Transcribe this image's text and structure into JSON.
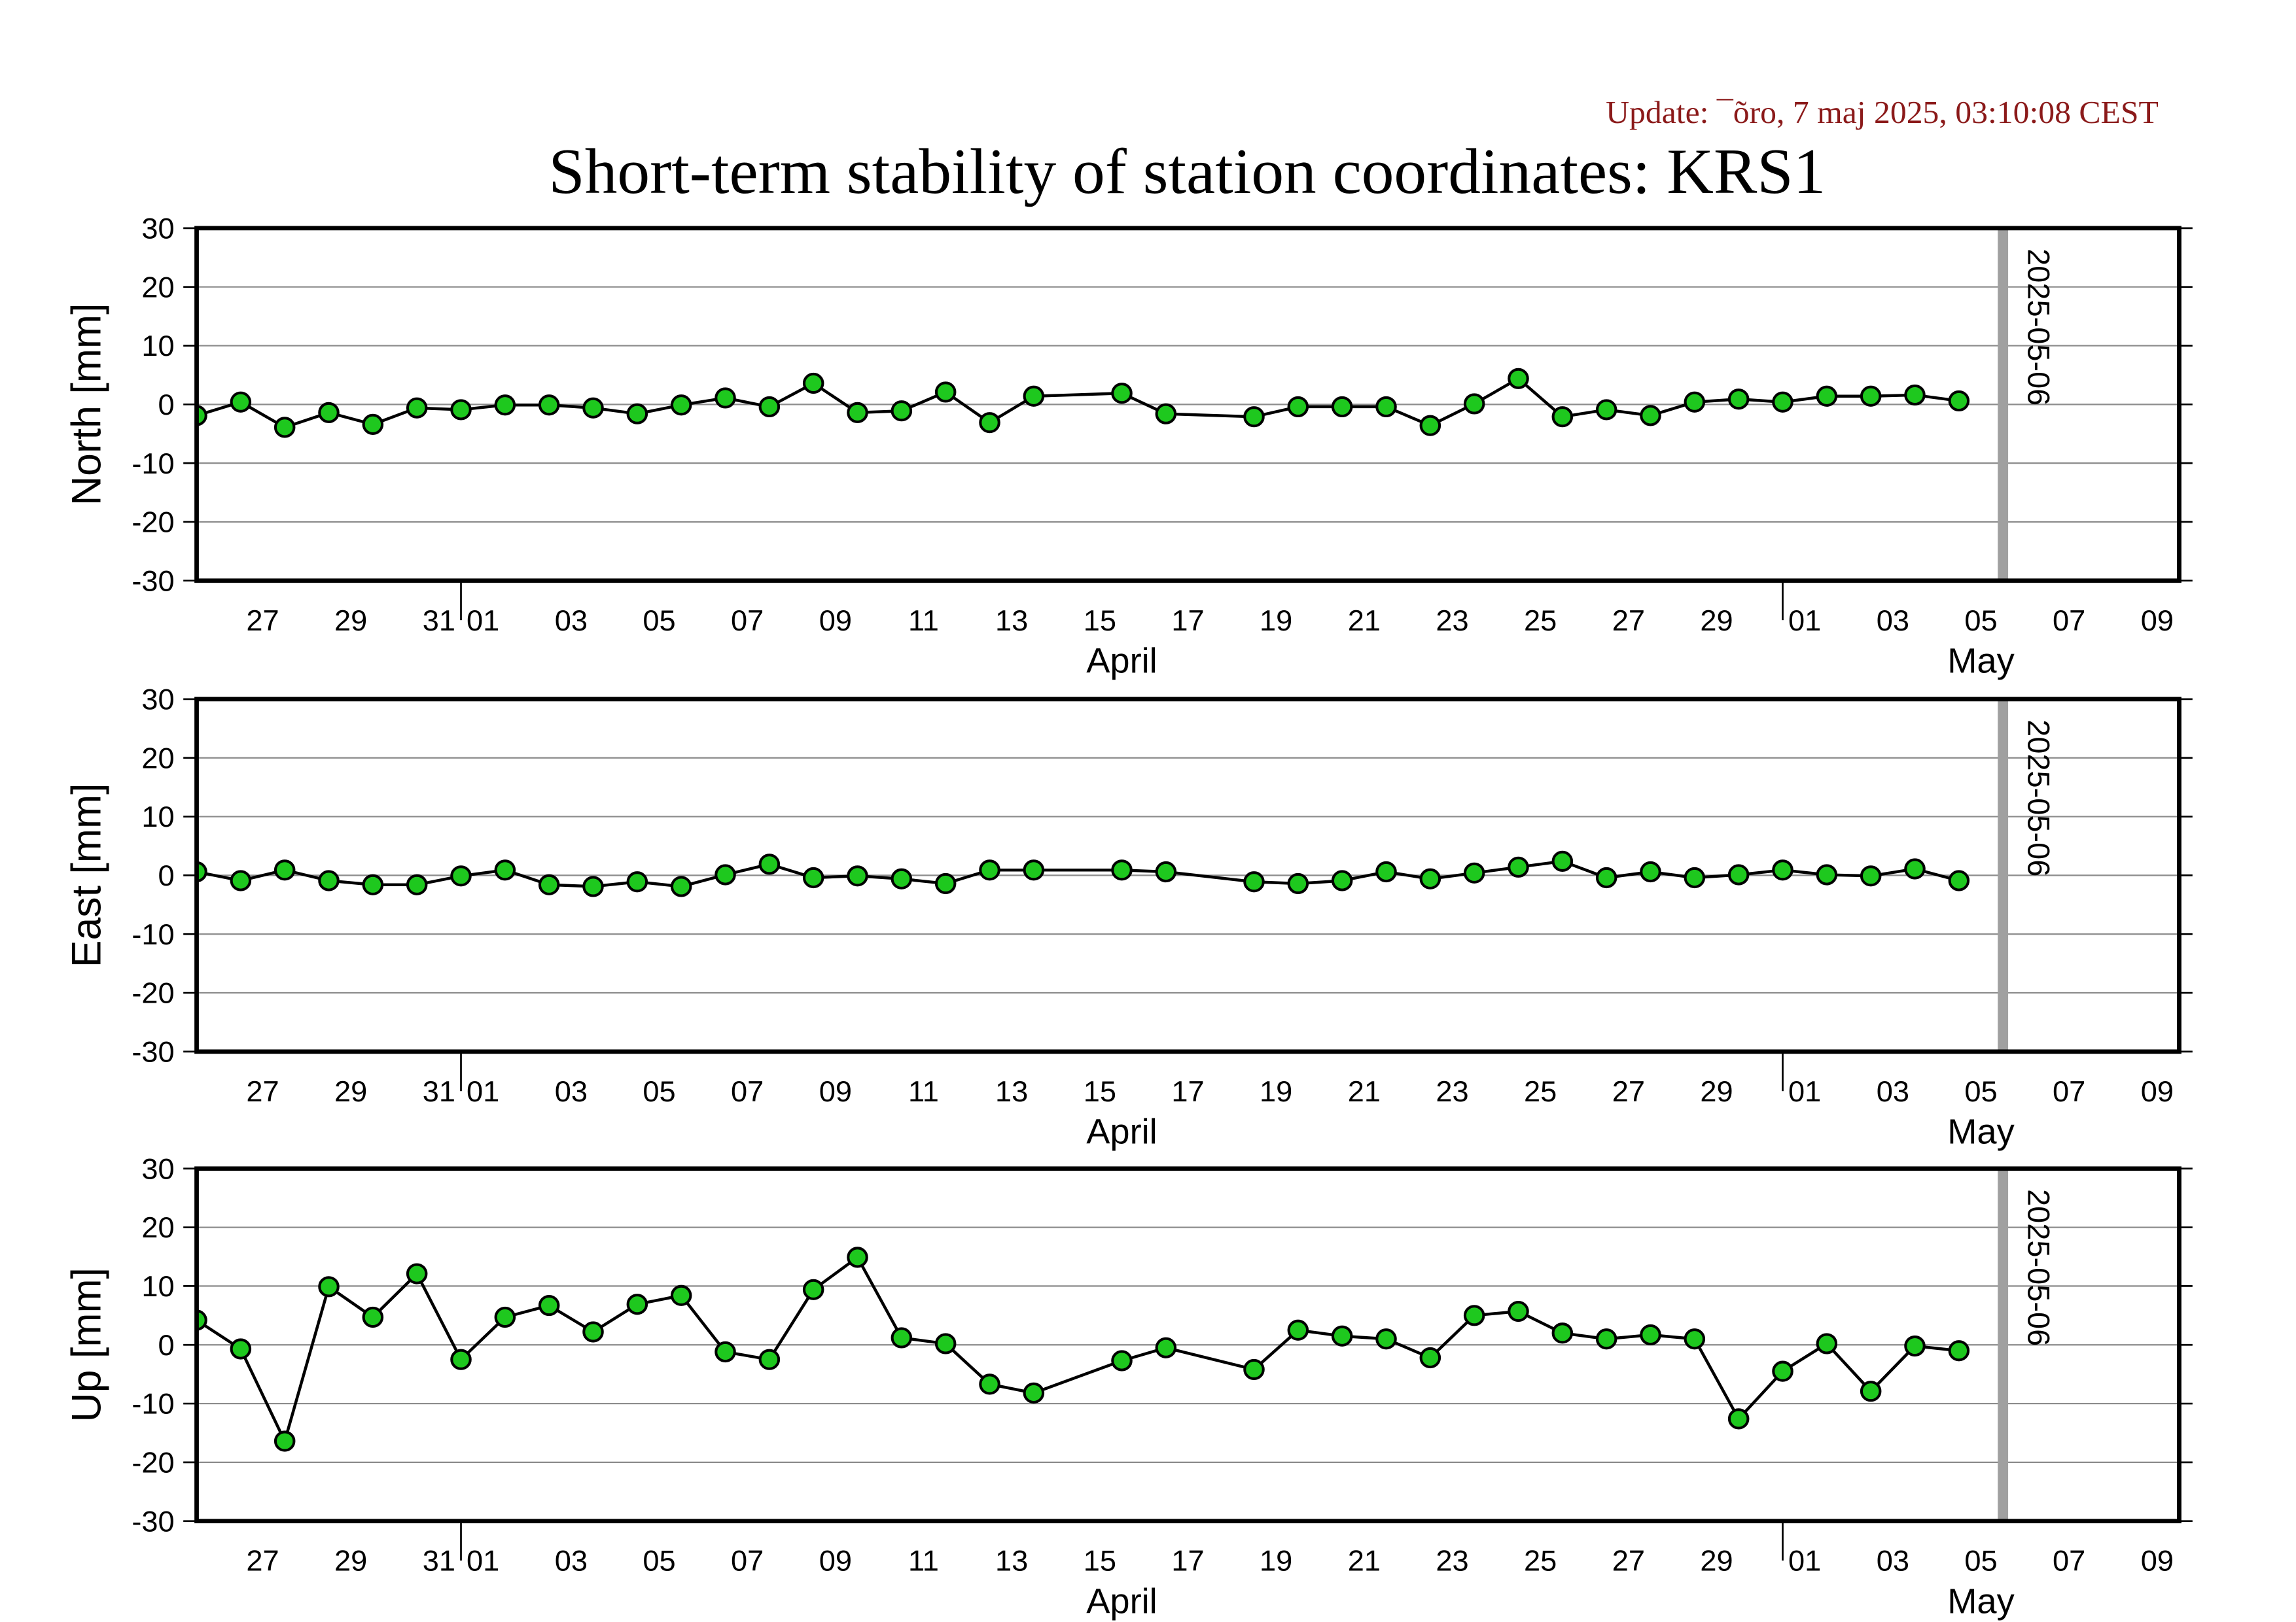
{
  "update_text": "Update: ¯õro, 7 maj 2025, 03:10:08 CEST",
  "title": "Short-term stability of station coordinates: KRS1",
  "colors": {
    "update_text": "#8b1a1a",
    "point_fill": "#1ec81e",
    "point_edge": "#000000",
    "line": "#000000",
    "grid": "#8c8c8c",
    "marker_line": "#a0a0a0",
    "frame": "#000000"
  },
  "chart_data": [
    {
      "type": "line",
      "ylabel": "North [mm]",
      "ylim": [
        -30,
        30
      ],
      "yticks": [
        -30,
        -20,
        -10,
        0,
        10,
        20,
        30
      ],
      "grid": "horizontal",
      "xlim": [
        "2025-03-26",
        "2025-05-10"
      ],
      "x_tick_labels": [
        {
          "date": "2025-03-27",
          "label": "27"
        },
        {
          "date": "2025-03-29",
          "label": "29"
        },
        {
          "date": "2025-03-31",
          "label": "31"
        },
        {
          "date": "2025-04-01",
          "label": "01"
        },
        {
          "date": "2025-04-03",
          "label": "03"
        },
        {
          "date": "2025-04-05",
          "label": "05"
        },
        {
          "date": "2025-04-07",
          "label": "07"
        },
        {
          "date": "2025-04-09",
          "label": "09"
        },
        {
          "date": "2025-04-11",
          "label": "11"
        },
        {
          "date": "2025-04-13",
          "label": "13"
        },
        {
          "date": "2025-04-15",
          "label": "15"
        },
        {
          "date": "2025-04-17",
          "label": "17"
        },
        {
          "date": "2025-04-19",
          "label": "19"
        },
        {
          "date": "2025-04-21",
          "label": "21"
        },
        {
          "date": "2025-04-23",
          "label": "23"
        },
        {
          "date": "2025-04-25",
          "label": "25"
        },
        {
          "date": "2025-04-27",
          "label": "27"
        },
        {
          "date": "2025-04-29",
          "label": "29"
        },
        {
          "date": "2025-05-01",
          "label": "01"
        },
        {
          "date": "2025-05-03",
          "label": "03"
        },
        {
          "date": "2025-05-05",
          "label": "05"
        },
        {
          "date": "2025-05-07",
          "label": "07"
        },
        {
          "date": "2025-05-09",
          "label": "09"
        }
      ],
      "month_labels": [
        {
          "label": "April",
          "start": "2025-04-01",
          "end": "2025-05-01"
        },
        {
          "label": "May",
          "start": "2025-05-01",
          "end": "2025-06-01"
        }
      ],
      "marker_line": {
        "date": "2025-05-06",
        "label": "2025-05-06"
      },
      "x": [
        "2025-03-26",
        "2025-03-27",
        "2025-03-28",
        "2025-03-29",
        "2025-03-30",
        "2025-03-31",
        "2025-04-01",
        "2025-04-02",
        "2025-04-03",
        "2025-04-04",
        "2025-04-05",
        "2025-04-06",
        "2025-04-07",
        "2025-04-08",
        "2025-04-09",
        "2025-04-10",
        "2025-04-11",
        "2025-04-12",
        "2025-04-13",
        "2025-04-14",
        "2025-04-16",
        "2025-04-17",
        "2025-04-19",
        "2025-04-20",
        "2025-04-21",
        "2025-04-22",
        "2025-04-23",
        "2025-04-24",
        "2025-04-25",
        "2025-04-26",
        "2025-04-27",
        "2025-04-28",
        "2025-04-29",
        "2025-04-30",
        "2025-05-01",
        "2025-05-02",
        "2025-05-03",
        "2025-05-04",
        "2025-05-05"
      ],
      "series": [
        {
          "y": [
            -1.9,
            0.4,
            -3.9,
            -1.4,
            -3.4,
            -0.6,
            -0.9,
            -0.1,
            -0.1,
            -0.6,
            -1.6,
            -0.1,
            1.1,
            -0.4,
            3.6,
            -1.4,
            -1.1,
            2.1,
            -3.1,
            1.4,
            1.9,
            -1.6,
            -2.1,
            -0.4,
            -0.4,
            -0.4,
            -3.6,
            0.1,
            4.4,
            -2.1,
            -0.9,
            -1.9,
            0.4,
            0.9,
            0.4,
            1.4,
            1.4,
            1.6,
            0.6
          ]
        }
      ]
    },
    {
      "type": "line",
      "ylabel": "East [mm]",
      "ylim": [
        -30,
        30
      ],
      "yticks": [
        -30,
        -20,
        -10,
        0,
        10,
        20,
        30
      ],
      "grid": "horizontal",
      "xlim": [
        "2025-03-26",
        "2025-05-10"
      ],
      "x_tick_labels": [
        {
          "date": "2025-03-27",
          "label": "27"
        },
        {
          "date": "2025-03-29",
          "label": "29"
        },
        {
          "date": "2025-03-31",
          "label": "31"
        },
        {
          "date": "2025-04-01",
          "label": "01"
        },
        {
          "date": "2025-04-03",
          "label": "03"
        },
        {
          "date": "2025-04-05",
          "label": "05"
        },
        {
          "date": "2025-04-07",
          "label": "07"
        },
        {
          "date": "2025-04-09",
          "label": "09"
        },
        {
          "date": "2025-04-11",
          "label": "11"
        },
        {
          "date": "2025-04-13",
          "label": "13"
        },
        {
          "date": "2025-04-15",
          "label": "15"
        },
        {
          "date": "2025-04-17",
          "label": "17"
        },
        {
          "date": "2025-04-19",
          "label": "19"
        },
        {
          "date": "2025-04-21",
          "label": "21"
        },
        {
          "date": "2025-04-23",
          "label": "23"
        },
        {
          "date": "2025-04-25",
          "label": "25"
        },
        {
          "date": "2025-04-27",
          "label": "27"
        },
        {
          "date": "2025-04-29",
          "label": "29"
        },
        {
          "date": "2025-05-01",
          "label": "01"
        },
        {
          "date": "2025-05-03",
          "label": "03"
        },
        {
          "date": "2025-05-05",
          "label": "05"
        },
        {
          "date": "2025-05-07",
          "label": "07"
        },
        {
          "date": "2025-05-09",
          "label": "09"
        }
      ],
      "month_labels": [
        {
          "label": "April",
          "start": "2025-04-01",
          "end": "2025-05-01"
        },
        {
          "label": "May",
          "start": "2025-05-01",
          "end": "2025-06-01"
        }
      ],
      "marker_line": {
        "date": "2025-05-06",
        "label": "2025-05-06"
      },
      "x": [
        "2025-03-26",
        "2025-03-27",
        "2025-03-28",
        "2025-03-29",
        "2025-03-30",
        "2025-03-31",
        "2025-04-01",
        "2025-04-02",
        "2025-04-03",
        "2025-04-04",
        "2025-04-05",
        "2025-04-06",
        "2025-04-07",
        "2025-04-08",
        "2025-04-09",
        "2025-04-10",
        "2025-04-11",
        "2025-04-12",
        "2025-04-13",
        "2025-04-14",
        "2025-04-16",
        "2025-04-17",
        "2025-04-19",
        "2025-04-20",
        "2025-04-21",
        "2025-04-22",
        "2025-04-23",
        "2025-04-24",
        "2025-04-25",
        "2025-04-26",
        "2025-04-27",
        "2025-04-28",
        "2025-04-29",
        "2025-04-30",
        "2025-05-01",
        "2025-05-02",
        "2025-05-03",
        "2025-05-04",
        "2025-05-05"
      ],
      "series": [
        {
          "y": [
            0.6,
            -0.9,
            0.9,
            -0.9,
            -1.6,
            -1.6,
            -0.1,
            0.9,
            -1.6,
            -1.9,
            -1.1,
            -1.9,
            0.1,
            1.9,
            -0.4,
            -0.1,
            -0.6,
            -1.4,
            0.9,
            0.9,
            0.9,
            0.6,
            -1.1,
            -1.4,
            -0.9,
            0.6,
            -0.6,
            0.4,
            1.4,
            2.4,
            -0.4,
            0.6,
            -0.4,
            0.1,
            0.9,
            0.1,
            -0.1,
            1.1,
            -0.9
          ]
        }
      ]
    },
    {
      "type": "line",
      "ylabel": "Up [mm]",
      "ylim": [
        -30,
        30
      ],
      "yticks": [
        -30,
        -20,
        -10,
        0,
        10,
        20,
        30
      ],
      "grid": "horizontal",
      "xlim": [
        "2025-03-26",
        "2025-05-10"
      ],
      "x_tick_labels": [
        {
          "date": "2025-03-27",
          "label": "27"
        },
        {
          "date": "2025-03-29",
          "label": "29"
        },
        {
          "date": "2025-03-31",
          "label": "31"
        },
        {
          "date": "2025-04-01",
          "label": "01"
        },
        {
          "date": "2025-04-03",
          "label": "03"
        },
        {
          "date": "2025-04-05",
          "label": "05"
        },
        {
          "date": "2025-04-07",
          "label": "07"
        },
        {
          "date": "2025-04-09",
          "label": "09"
        },
        {
          "date": "2025-04-11",
          "label": "11"
        },
        {
          "date": "2025-04-13",
          "label": "13"
        },
        {
          "date": "2025-04-15",
          "label": "15"
        },
        {
          "date": "2025-04-17",
          "label": "17"
        },
        {
          "date": "2025-04-19",
          "label": "19"
        },
        {
          "date": "2025-04-21",
          "label": "21"
        },
        {
          "date": "2025-04-23",
          "label": "23"
        },
        {
          "date": "2025-04-25",
          "label": "25"
        },
        {
          "date": "2025-04-27",
          "label": "27"
        },
        {
          "date": "2025-04-29",
          "label": "29"
        },
        {
          "date": "2025-05-01",
          "label": "01"
        },
        {
          "date": "2025-05-03",
          "label": "03"
        },
        {
          "date": "2025-05-05",
          "label": "05"
        },
        {
          "date": "2025-05-07",
          "label": "07"
        },
        {
          "date": "2025-05-09",
          "label": "09"
        }
      ],
      "month_labels": [
        {
          "label": "April",
          "start": "2025-04-01",
          "end": "2025-05-01"
        },
        {
          "label": "May",
          "start": "2025-05-01",
          "end": "2025-06-01"
        }
      ],
      "marker_line": {
        "date": "2025-05-06",
        "label": "2025-05-06"
      },
      "x": [
        "2025-03-26",
        "2025-03-27",
        "2025-03-28",
        "2025-03-29",
        "2025-03-30",
        "2025-03-31",
        "2025-04-01",
        "2025-04-02",
        "2025-04-03",
        "2025-04-04",
        "2025-04-05",
        "2025-04-06",
        "2025-04-07",
        "2025-04-08",
        "2025-04-09",
        "2025-04-10",
        "2025-04-11",
        "2025-04-12",
        "2025-04-13",
        "2025-04-14",
        "2025-04-16",
        "2025-04-17",
        "2025-04-19",
        "2025-04-20",
        "2025-04-21",
        "2025-04-22",
        "2025-04-23",
        "2025-04-24",
        "2025-04-25",
        "2025-04-26",
        "2025-04-27",
        "2025-04-28",
        "2025-04-29",
        "2025-04-30",
        "2025-05-01",
        "2025-05-02",
        "2025-05-03",
        "2025-05-04",
        "2025-05-05"
      ],
      "series": [
        {
          "y": [
            4.2,
            -0.7,
            -16.4,
            9.9,
            4.7,
            12.1,
            -2.5,
            4.7,
            6.7,
            2.2,
            6.9,
            8.4,
            -1.2,
            -2.5,
            9.4,
            14.9,
            1.2,
            0.2,
            -6.7,
            -8.2,
            -2.7,
            -0.5,
            -4.2,
            2.5,
            1.5,
            1.0,
            -2.2,
            5.0,
            5.7,
            2.0,
            1.0,
            1.7,
            1.0,
            -12.6,
            -4.5,
            0.2,
            -7.9,
            -0.2,
            -1.0
          ]
        }
      ]
    }
  ]
}
